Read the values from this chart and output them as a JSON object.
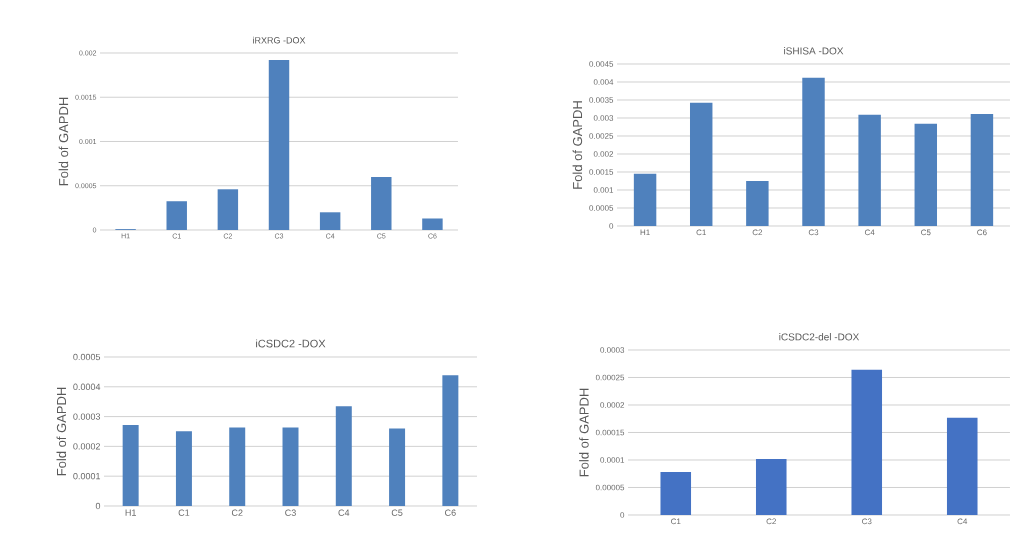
{
  "chart_data": [
    {
      "type": "bar",
      "title": "iRXRG -DOX",
      "ylabel": "Fold of GAPDH",
      "categories": [
        "H1",
        "C1",
        "C2",
        "C3",
        "C4",
        "C5",
        "C6"
      ],
      "values": [
        1e-05,
        0.000325,
        0.00046,
        0.00192,
        0.0002,
        0.0006,
        0.00013
      ],
      "color": "#4f81bd",
      "ylim": [
        0,
        0.002
      ],
      "yticks": [
        0,
        0.0005,
        0.001,
        0.0015,
        0.002
      ],
      "grid": "y"
    },
    {
      "type": "bar",
      "title": "iSHISA -DOX",
      "ylabel": "Fold of GAPDH",
      "categories": [
        "H1",
        "C1",
        "C2",
        "C3",
        "C4",
        "C5",
        "C6"
      ],
      "values": [
        0.00145,
        0.00342,
        0.00125,
        0.00412,
        0.00309,
        0.00284,
        0.00311
      ],
      "color": "#4f81bd",
      "ylim": [
        0,
        0.0045
      ],
      "yticks": [
        0,
        0.0005,
        0.001,
        0.0015,
        0.002,
        0.0025,
        0.003,
        0.0035,
        0.004,
        0.0045
      ],
      "grid": "y"
    },
    {
      "type": "bar",
      "title": "iCSDC2 -DOX",
      "ylabel": "Fold of GAPDH",
      "categories": [
        "H1",
        "C1",
        "C2",
        "C3",
        "C4",
        "C5",
        "C6"
      ],
      "values": [
        0.000272,
        0.000251,
        0.000263,
        0.000263,
        0.000335,
        0.00026,
        0.000439
      ],
      "color": "#4f81bd",
      "ylim": [
        0,
        0.0005
      ],
      "yticks": [
        0,
        0.0001,
        0.0002,
        0.0003,
        0.0004,
        0.0005
      ],
      "grid": "y"
    },
    {
      "type": "bar",
      "title": "iCSDC2-del -DOX",
      "ylabel": "Fold of GAPDH",
      "categories": [
        "C1",
        "C2",
        "C3",
        "C4"
      ],
      "values": [
        7.8e-05,
        0.000102,
        0.000264,
        0.000177
      ],
      "color": "#4472c4",
      "ylim": [
        0,
        0.0003
      ],
      "yticks": [
        0,
        {
          "value": 5e-05,
          "label": "0.00005"
        },
        0.0001,
        0.00015,
        0.0002,
        0.00025,
        0.0003
      ],
      "grid": "y"
    }
  ]
}
